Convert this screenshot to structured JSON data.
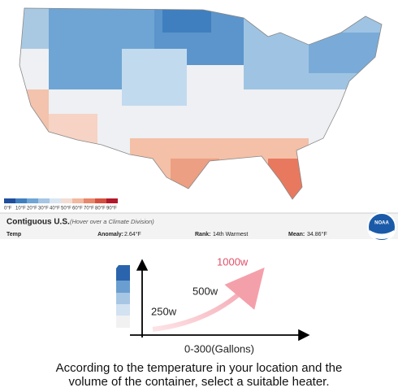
{
  "map": {
    "legend": [
      "0°F",
      "10°F",
      "20°F",
      "30°F",
      "40°F",
      "50°F",
      "60°F",
      "70°F",
      "80°F",
      "90°F"
    ]
  },
  "info_bar": {
    "region": "Contiguous U.S.",
    "hint": "(Hover over a Climate Division)",
    "variable": "Temp",
    "anomaly_label": "Anomaly:",
    "anomaly": "2.64°F",
    "rank_label": "Rank:",
    "rank": "14th Warmest",
    "mean_label": "Mean:",
    "mean": "34.86°F"
  },
  "logo": "NOAA",
  "diagram": {
    "labels": [
      "250w",
      "500w",
      "1000w"
    ],
    "x_axis": "0-300(Gallons)"
  },
  "caption": [
    "According to the temperature in your location and the",
    "volume of the container, select a suitable heater."
  ]
}
